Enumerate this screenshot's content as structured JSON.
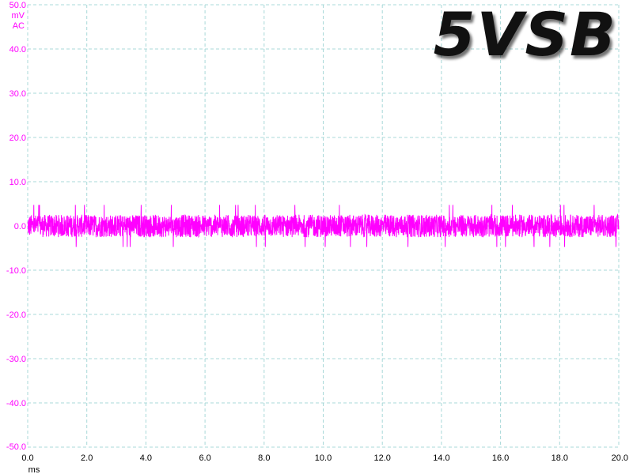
{
  "chart_data": {
    "type": "line",
    "title": "5VSB",
    "ylabel_unit": "mV",
    "ylabel_coupling": "AC",
    "xlabel": "ms",
    "xlim": [
      0.0,
      20.0
    ],
    "ylim": [
      -50.0,
      50.0
    ],
    "x_ticks": [
      "0.0",
      "2.0",
      "4.0",
      "6.0",
      "8.0",
      "10.0",
      "12.0",
      "14.0",
      "16.0",
      "18.0",
      "20.0"
    ],
    "y_ticks": [
      "50.0",
      "40.0",
      "30.0",
      "20.0",
      "10.0",
      "0.0",
      "-10.0",
      "-20.0",
      "-30.0",
      "-40.0",
      "-50.0"
    ],
    "grid": true,
    "series": [
      {
        "color": "#ff00ff",
        "signal": "noise",
        "mean": 0.0,
        "typical_peak_to_peak": 6.0,
        "max_peak_to_peak": 9.5
      }
    ]
  },
  "colors": {
    "trace": "#ff00ff",
    "axis_text": "#ff00ff",
    "grid": "#a8d8d8",
    "x_text": "#000000"
  }
}
